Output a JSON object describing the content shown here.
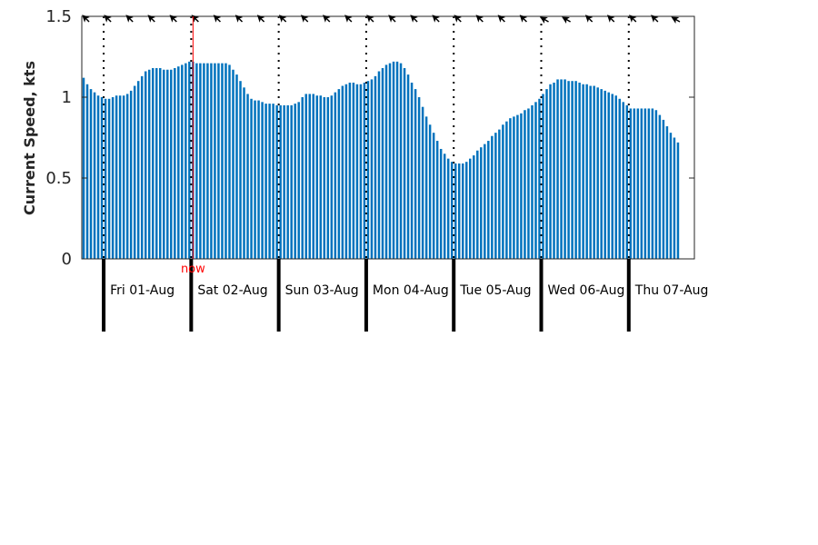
{
  "chart_data": {
    "type": "bar",
    "ylabel": "Current Speed, kts",
    "ylim": [
      0,
      1.5
    ],
    "y_ticks": [
      {
        "value": 0,
        "label": "0"
      },
      {
        "value": 0.5,
        "label": "0.5"
      },
      {
        "value": 1,
        "label": "1"
      },
      {
        "value": 1.5,
        "label": "1.5"
      }
    ],
    "x_range_hours": [
      0,
      168
    ],
    "bar_interval_hours": 1,
    "bar_color": "#0072bd",
    "values": [
      1.12,
      1.08,
      1.05,
      1.03,
      1.01,
      1.0,
      0.99,
      0.99,
      1.0,
      1.01,
      1.01,
      1.01,
      1.02,
      1.04,
      1.07,
      1.1,
      1.13,
      1.16,
      1.17,
      1.18,
      1.18,
      1.18,
      1.17,
      1.17,
      1.17,
      1.18,
      1.19,
      1.2,
      1.21,
      1.22,
      1.22,
      1.21,
      1.21,
      1.21,
      1.21,
      1.21,
      1.21,
      1.21,
      1.21,
      1.21,
      1.2,
      1.17,
      1.14,
      1.1,
      1.06,
      1.02,
      0.99,
      0.98,
      0.98,
      0.97,
      0.96,
      0.96,
      0.96,
      0.95,
      0.95,
      0.95,
      0.95,
      0.95,
      0.96,
      0.97,
      1.0,
      1.02,
      1.02,
      1.02,
      1.01,
      1.01,
      1.0,
      1.0,
      1.01,
      1.03,
      1.05,
      1.07,
      1.08,
      1.09,
      1.09,
      1.08,
      1.08,
      1.09,
      1.1,
      1.11,
      1.13,
      1.16,
      1.18,
      1.2,
      1.21,
      1.22,
      1.22,
      1.21,
      1.18,
      1.14,
      1.09,
      1.05,
      1.0,
      0.94,
      0.88,
      0.83,
      0.78,
      0.73,
      0.68,
      0.65,
      0.62,
      0.6,
      0.59,
      0.59,
      0.59,
      0.6,
      0.62,
      0.64,
      0.67,
      0.69,
      0.71,
      0.73,
      0.76,
      0.78,
      0.8,
      0.83,
      0.85,
      0.87,
      0.88,
      0.89,
      0.9,
      0.92,
      0.93,
      0.95,
      0.97,
      0.99,
      1.02,
      1.05,
      1.08,
      1.09,
      1.11,
      1.11,
      1.11,
      1.1,
      1.1,
      1.1,
      1.09,
      1.08,
      1.08,
      1.07,
      1.07,
      1.06,
      1.05,
      1.04,
      1.03,
      1.02,
      1.01,
      0.99,
      0.97,
      0.95,
      0.93,
      0.93,
      0.93,
      0.93,
      0.93,
      0.93,
      0.93,
      0.92,
      0.89,
      0.86,
      0.82,
      0.78,
      0.75,
      0.72
    ],
    "day_labels": [
      {
        "label": "Fri 01-Aug",
        "start_hour": 6
      },
      {
        "label": "Sat 02-Aug",
        "start_hour": 30
      },
      {
        "label": "Sun 03-Aug",
        "start_hour": 54
      },
      {
        "label": "Mon 04-Aug",
        "start_hour": 78
      },
      {
        "label": "Tue 05-Aug",
        "start_hour": 102
      },
      {
        "label": "Wed 06-Aug",
        "start_hour": 126
      },
      {
        "label": "Thu 07-Aug",
        "start_hour": 150
      }
    ],
    "now": {
      "label": "now",
      "hour": 30.5,
      "color": "#ff0000"
    },
    "direction_arrows": {
      "interval_hours": 6,
      "start_hour": 2,
      "directions_deg": [
        315,
        315,
        315,
        315,
        315,
        315,
        315,
        315,
        315,
        315,
        315,
        315,
        315,
        315,
        315,
        315,
        315,
        315,
        315,
        315,
        315,
        300,
        300,
        315,
        315,
        315,
        315,
        300
      ]
    }
  }
}
